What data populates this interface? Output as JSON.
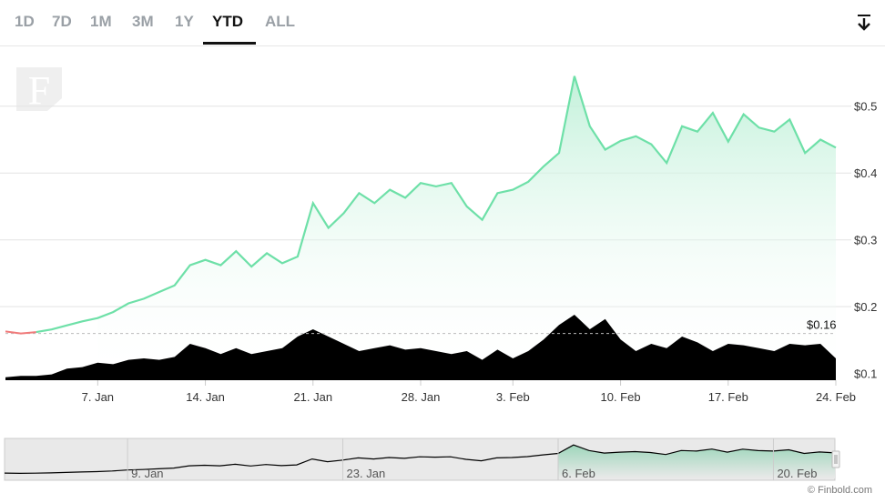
{
  "range_tabs": [
    "1D",
    "7D",
    "1M",
    "3M",
    "1Y",
    "YTD",
    "ALL"
  ],
  "active_range": "YTD",
  "download_icon": "download-arrow-icon",
  "watermark_letter": "F",
  "credit": "© Finbold.com",
  "colors": {
    "up_line": "#6ee0a8",
    "down_line": "#f07a7a",
    "area_top": "#bff0d8",
    "volume": "#000000",
    "navigator_bg": "#e9e9e9"
  },
  "chart_data": {
    "type": "area",
    "title": "",
    "xlabel": "",
    "ylabel": "",
    "x_ticks": [
      "7. Jan",
      "14. Jan",
      "21. Jan",
      "28. Jan",
      "3. Feb",
      "10. Feb",
      "17. Feb",
      "24. Feb"
    ],
    "y_ticks": [
      "$0.1",
      "$0.2",
      "$0.3",
      "$0.4",
      "$0.5"
    ],
    "ylim": [
      0.09,
      0.55
    ],
    "current_price_label": "$0.16",
    "current_price_level": 0.16,
    "navigator_ticks": [
      "9. Jan",
      "23. Jan",
      "6. Feb",
      "20. Feb"
    ],
    "series": [
      {
        "name": "",
        "dates": [
          "2024-01-01",
          "2024-01-02",
          "2024-01-03",
          "2024-01-04",
          "2024-01-05",
          "2024-01-06",
          "2024-01-07",
          "2024-01-08",
          "2024-01-09",
          "2024-01-10",
          "2024-01-11",
          "2024-01-12",
          "2024-01-13",
          "2024-01-14",
          "2024-01-15",
          "2024-01-16",
          "2024-01-17",
          "2024-01-18",
          "2024-01-19",
          "2024-01-20",
          "2024-01-21",
          "2024-01-22",
          "2024-01-23",
          "2024-01-24",
          "2024-01-25",
          "2024-01-26",
          "2024-01-27",
          "2024-01-28",
          "2024-01-29",
          "2024-01-30",
          "2024-01-31",
          "2024-02-01",
          "2024-02-02",
          "2024-02-03",
          "2024-02-04",
          "2024-02-05",
          "2024-02-06",
          "2024-02-07",
          "2024-02-08",
          "2024-02-09",
          "2024-02-10",
          "2024-02-11",
          "2024-02-12",
          "2024-02-13",
          "2024-02-14",
          "2024-02-15",
          "2024-02-16",
          "2024-02-17",
          "2024-02-18",
          "2024-02-19",
          "2024-02-20",
          "2024-02-21",
          "2024-02-22",
          "2024-02-23",
          "2024-02-24"
        ],
        "values": [
          0.163,
          0.16,
          0.162,
          0.166,
          0.172,
          0.178,
          0.183,
          0.192,
          0.205,
          0.212,
          0.222,
          0.232,
          0.262,
          0.27,
          0.262,
          0.283,
          0.26,
          0.28,
          0.265,
          0.275,
          0.355,
          0.318,
          0.34,
          0.37,
          0.355,
          0.375,
          0.363,
          0.385,
          0.38,
          0.385,
          0.35,
          0.33,
          0.37,
          0.375,
          0.387,
          0.41,
          0.43,
          0.545,
          0.47,
          0.435,
          0.448,
          0.455,
          0.443,
          0.415,
          0.47,
          0.462,
          0.49,
          0.447,
          0.488,
          0.468,
          0.462,
          0.48,
          0.43,
          0.45,
          0.438
        ]
      },
      {
        "name": "Volume",
        "values": [
          2,
          3,
          3,
          4,
          8,
          9,
          12,
          11,
          14,
          15,
          14,
          16,
          25,
          22,
          18,
          22,
          18,
          20,
          22,
          30,
          35,
          30,
          25,
          20,
          22,
          24,
          21,
          22,
          20,
          18,
          20,
          14,
          21,
          15,
          20,
          28,
          38,
          45,
          35,
          42,
          28,
          20,
          25,
          22,
          30,
          26,
          20,
          25,
          24,
          22,
          20,
          25,
          24,
          25,
          15
        ]
      }
    ]
  }
}
